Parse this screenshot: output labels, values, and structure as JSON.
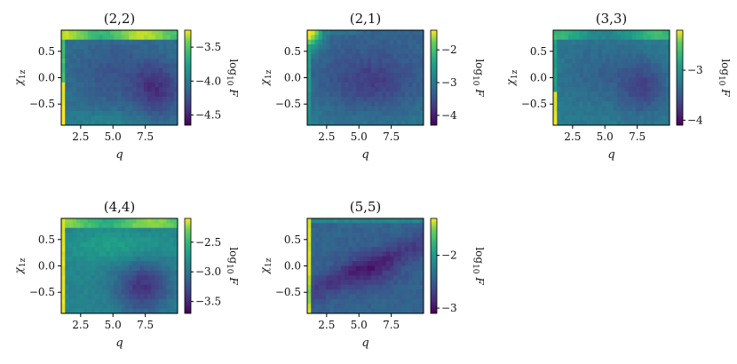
{
  "chart_data": [
    {
      "type": "heatmap",
      "title": "(2,2)",
      "xlabel": "q",
      "ylabel": "χ1z",
      "colorbar_label": "log10 F",
      "colormap": "viridis",
      "x_ticks": [
        "2.5",
        "5.0",
        "7.5"
      ],
      "y_ticks": [
        "0.5",
        "0.0",
        "−0.5"
      ],
      "colorbar_ticks": [
        "−3.5",
        "−4.0",
        "−4.5"
      ],
      "colorbar_tick_values": [
        -3.5,
        -4.0,
        -4.5
      ],
      "xlim": [
        1,
        10
      ],
      "ylim": [
        -0.9,
        0.9
      ],
      "clim": [
        -4.65,
        -3.25
      ],
      "grid": "31 x 20 cells (estimated)",
      "features": "bright ridge at high chi1z and along q=1 edge; darker trough around q 7-9, chi1z -0.3"
    },
    {
      "type": "heatmap",
      "title": "(2,1)",
      "xlabel": "q",
      "ylabel": "χ1z",
      "colorbar_label": "log10 F",
      "colormap": "viridis",
      "x_ticks": [
        "2.5",
        "5.0",
        "7.5"
      ],
      "y_ticks": [
        "0.5",
        "0.0",
        "−0.5"
      ],
      "colorbar_ticks": [
        "−2",
        "−3",
        "−4"
      ],
      "colorbar_tick_values": [
        -2,
        -3,
        -4
      ],
      "xlim": [
        1,
        10
      ],
      "ylim": [
        -0.9,
        0.9
      ],
      "clim": [
        -4.3,
        -1.4
      ],
      "grid": "31 x 20 cells (estimated)",
      "features": "bright corner at small q, high chi1z; broad dark region at mid q, chi1z near 0"
    },
    {
      "type": "heatmap",
      "title": "(3,3)",
      "xlabel": "q",
      "ylabel": "χ1z",
      "colorbar_label": "log10 F",
      "colormap": "viridis",
      "x_ticks": [
        "2.5",
        "5.0",
        "7.5"
      ],
      "y_ticks": [
        "0.5",
        "0.0",
        "−0.5"
      ],
      "colorbar_ticks": [
        "−3",
        "−4"
      ],
      "colorbar_tick_values": [
        -3,
        -4
      ],
      "xlim": [
        1,
        10
      ],
      "ylim": [
        -0.9,
        0.9
      ],
      "clim": [
        -4.1,
        -2.2
      ],
      "grid": "31 x 20 cells (estimated)",
      "features": "bright strip along q=1 at low chi1z and along top edge; dark patch near q 8, chi1z -0.2"
    },
    {
      "type": "heatmap",
      "title": "(4,4)",
      "xlabel": "q",
      "ylabel": "χ1z",
      "colorbar_label": "log10 F",
      "colormap": "viridis",
      "x_ticks": [
        "2.5",
        "5.0",
        "7.5"
      ],
      "y_ticks": [
        "0.5",
        "0.0",
        "−0.5"
      ],
      "colorbar_ticks": [
        "−2.5",
        "−3.0",
        "−3.5"
      ],
      "colorbar_tick_values": [
        -2.5,
        -3.0,
        -3.5
      ],
      "xlim": [
        1,
        10
      ],
      "ylim": [
        -0.9,
        0.9
      ],
      "clim": [
        -3.7,
        -2.1
      ],
      "grid": "31 x 20 cells (estimated)",
      "features": "bright q=1 edge, greenish top band; dark region at q 6-9, chi1z -0.5 to 0"
    },
    {
      "type": "heatmap",
      "title": "(5,5)",
      "xlabel": "q",
      "ylabel": "χ1z",
      "colorbar_label": "log10 F",
      "colormap": "viridis",
      "x_ticks": [
        "2.5",
        "5.0",
        "7.5"
      ],
      "y_ticks": [
        "0.5",
        "0.0",
        "−0.5"
      ],
      "colorbar_ticks": [
        "−2",
        "−3"
      ],
      "colorbar_tick_values": [
        -2,
        -3
      ],
      "xlim": [
        1,
        10
      ],
      "ylim": [
        -0.9,
        0.9
      ],
      "clim": [
        -3.1,
        -1.3
      ],
      "grid": "31 x 20 cells (estimated)",
      "features": "bright q=1 edge; dark diagonal band across middle"
    }
  ]
}
